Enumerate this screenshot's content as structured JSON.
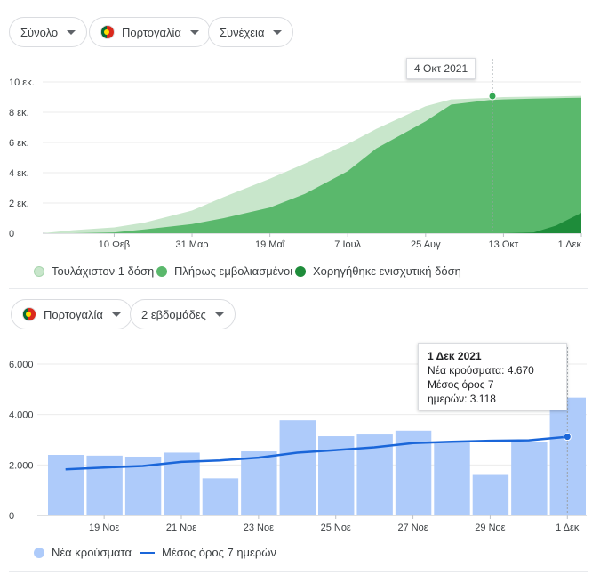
{
  "top_filters": {
    "metric": "Σύνολο",
    "country": "Πορτογαλία",
    "mode": "Συνέχεια"
  },
  "vaccine_chart": {
    "tooltip_date": "4 Οκτ 2021",
    "y_ticks": [
      "10 εκ.",
      "8 εκ.",
      "6 εκ.",
      "4 εκ.",
      "2 εκ.",
      "0"
    ],
    "x_ticks": [
      "10 Φεβ",
      "31 Μαρ",
      "19 Μαΐ",
      "7 Ιουλ",
      "25 Αυγ",
      "13 Οκτ",
      "1 Δεκ"
    ],
    "legend": {
      "at_least_one": "Τουλάχιστον 1 δόση",
      "fully": "Πλήρως εμβολιασμένοι",
      "booster": "Χορηγήθηκε ενισχυτική δόση"
    },
    "colors": {
      "at_least_one": "#c8e6cb",
      "fully": "#5ab86c",
      "booster": "#1e8c3a"
    }
  },
  "bottom_filters": {
    "country": "Πορτογαλία",
    "period": "2 εβδομάδες"
  },
  "chart_data": [
    {
      "type": "area",
      "title": "",
      "ylim": [
        0,
        10
      ],
      "y_unit": "εκ.",
      "x": [
        "2020-12-27",
        "2021-01-15",
        "2021-02-10",
        "2021-03-01",
        "2021-03-31",
        "2021-04-20",
        "2021-05-19",
        "2021-06-10",
        "2021-07-07",
        "2021-07-25",
        "2021-08-25",
        "2021-09-10",
        "2021-10-04",
        "2021-10-13",
        "2021-11-01",
        "2021-11-15",
        "2021-12-01"
      ],
      "series": [
        {
          "name": "Τουλάχιστον 1 δόση",
          "values": [
            0.0,
            0.2,
            0.38,
            0.7,
            1.5,
            2.4,
            3.6,
            4.6,
            5.9,
            6.9,
            8.4,
            8.85,
            8.95,
            9.0,
            9.03,
            9.05,
            9.08
          ]
        },
        {
          "name": "Πλήρως εμβολιασμένοι",
          "values": [
            0.0,
            0.0,
            0.05,
            0.25,
            0.6,
            1.0,
            1.7,
            2.6,
            4.1,
            5.6,
            7.4,
            8.5,
            8.8,
            8.85,
            8.9,
            8.93,
            8.96
          ]
        },
        {
          "name": "Χορηγήθηκε ενισχυτική δόση",
          "values": [
            0,
            0,
            0,
            0,
            0,
            0,
            0,
            0,
            0,
            0,
            0,
            0,
            0,
            0,
            0.05,
            0.5,
            1.35
          ]
        }
      ],
      "x_ticks": [
        "10 Φεβ",
        "31 Μαρ",
        "19 Μαΐ",
        "7 Ιουλ",
        "25 Αυγ",
        "13 Οκτ",
        "1 Δεκ"
      ]
    },
    {
      "type": "bar",
      "title": "",
      "ylim": [
        0,
        6000
      ],
      "y_ticks": [
        "6.000",
        "4.000",
        "2.000",
        "0"
      ],
      "categories": [
        "18 Νοε",
        "19 Νοε",
        "20 Νοε",
        "21 Νοε",
        "22 Νοε",
        "23 Νοε",
        "24 Νοε",
        "25 Νοε",
        "26 Νοε",
        "27 Νοε",
        "28 Νοε",
        "29 Νοε",
        "30 Νοε",
        "1 Δεκ"
      ],
      "x_tick_labels": [
        "19 Νοε",
        "21 Νοε",
        "23 Νοε",
        "25 Νοε",
        "27 Νοε",
        "29 Νοε",
        "1 Δεκ"
      ],
      "series": [
        {
          "name": "Νέα κρούσματα",
          "values": [
            2400,
            2370,
            2330,
            2490,
            1470,
            2540,
            3770,
            3140,
            3210,
            3360,
            2910,
            1640,
            2900,
            4670
          ]
        },
        {
          "name": "Μέσος όρος 7 ημερών",
          "values": [
            1830,
            1900,
            1960,
            2120,
            2180,
            2290,
            2490,
            2590,
            2700,
            2870,
            2920,
            2960,
            2980,
            3118
          ]
        }
      ]
    }
  ],
  "cases_chart": {
    "tooltip": {
      "date": "1 Δεκ 2021",
      "line1": "Νέα κρούσματα: 4.670",
      "line2": "Μέσος όρος 7",
      "line3": "ημερών: 3.118"
    },
    "legend": {
      "cases": "Νέα κρούσματα",
      "avg": "Μέσος όρος 7 ημερών"
    },
    "colors": {
      "bar": "#aecbfa",
      "line": "#1a66d9"
    }
  }
}
